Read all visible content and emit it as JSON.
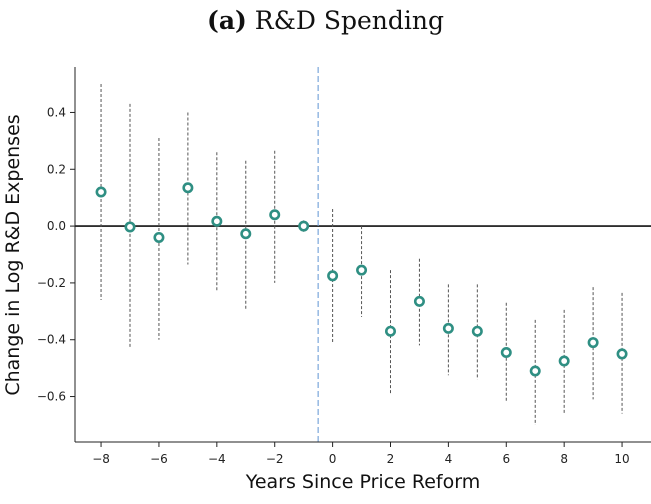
{
  "chart_data": {
    "type": "scatter",
    "title_tag": "(a)",
    "title_text": "R&D Spending",
    "xlabel": "Years Since Price Reform",
    "ylabel": "Change in Log R&D Expenses",
    "xlim": [
      -8.9,
      11.0
    ],
    "ylim": [
      -0.76,
      0.56
    ],
    "xticks": [
      -8,
      -6,
      -4,
      -2,
      0,
      2,
      4,
      6,
      8,
      10
    ],
    "yticks": [
      -0.6,
      -0.4,
      -0.2,
      0.0,
      0.2,
      0.4
    ],
    "xtick_labels": [
      "−8",
      "−6",
      "−4",
      "−2",
      "0",
      "2",
      "4",
      "6",
      "8",
      "10"
    ],
    "ytick_labels": [
      "−0.6",
      "−0.4",
      "−0.2",
      "0.0",
      "0.2",
      "0.4"
    ],
    "reference_hline": 0.0,
    "reference_vline": -0.5,
    "marker_color": "#2f8f83",
    "vline_color": "#6f9fd8",
    "x": [
      -8,
      -7,
      -6,
      -5,
      -4,
      -3,
      -2,
      -1,
      0,
      1,
      2,
      3,
      4,
      5,
      6,
      7,
      8,
      9,
      10
    ],
    "y": [
      0.12,
      -0.003,
      -0.04,
      0.135,
      0.017,
      -0.027,
      0.04,
      0.0,
      -0.175,
      -0.155,
      -0.37,
      -0.265,
      -0.36,
      -0.37,
      -0.445,
      -0.51,
      -0.475,
      -0.41,
      -0.45
    ],
    "ci_lower": [
      -0.26,
      -0.43,
      -0.4,
      -0.135,
      -0.23,
      -0.295,
      -0.2,
      -0.02,
      -0.41,
      -0.32,
      -0.595,
      -0.42,
      -0.525,
      -0.54,
      -0.62,
      -0.7,
      -0.66,
      -0.61,
      -0.66
    ],
    "ci_upper": [
      0.5,
      0.43,
      0.31,
      0.4,
      0.26,
      0.23,
      0.265,
      0.02,
      0.06,
      0.0,
      -0.155,
      -0.115,
      -0.205,
      -0.205,
      -0.27,
      -0.33,
      -0.295,
      -0.215,
      -0.235
    ]
  }
}
